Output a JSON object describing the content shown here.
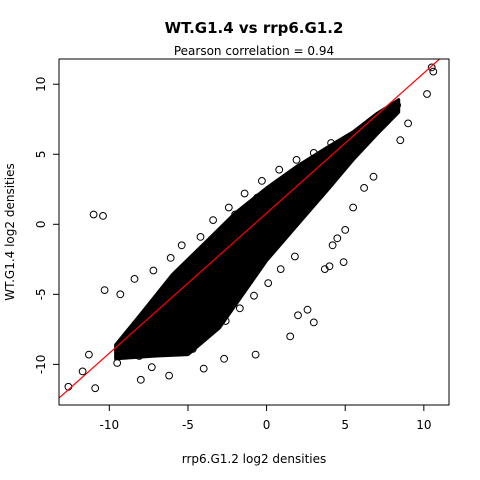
{
  "chart_data": {
    "type": "scatter",
    "title": "WT.G1.4 vs rrp6.G1.2",
    "subtitle": "Pearson correlation =  0.94",
    "xlabel": "rrp6.G1.2 log2 densities",
    "ylabel": "WT.G1.4 log2 densities",
    "xlim": [
      -13.2,
      11.6
    ],
    "ylim": [
      -12.9,
      11.8
    ],
    "x_ticks": [
      -10,
      -5,
      0,
      5,
      10
    ],
    "y_ticks": [
      -10,
      -5,
      0,
      5,
      10
    ],
    "x_tick_labels": [
      "-10",
      "-5",
      "0",
      "5",
      "10"
    ],
    "y_tick_labels": [
      "-10",
      "-5",
      "0",
      "5",
      "10"
    ],
    "grid": false,
    "point_marker": "open-circle",
    "point_color": "#000000",
    "fit_line": {
      "color": "#ff0000",
      "slope": 1.0,
      "intercept": 0.8
    },
    "series": [
      {
        "values": [
          [
            -11.0,
            0.7
          ],
          [
            -10.4,
            0.6
          ],
          [
            -10.3,
            -4.7
          ],
          [
            -12.6,
            -11.6
          ],
          [
            -11.7,
            -10.5
          ],
          [
            -10.9,
            -11.7
          ],
          [
            -11.3,
            -9.3
          ],
          [
            -8.0,
            -11.1
          ],
          [
            -7.3,
            -10.2
          ],
          [
            -6.2,
            -10.8
          ],
          [
            -4.0,
            -10.3
          ],
          [
            -2.7,
            -9.6
          ],
          [
            -0.7,
            -9.3
          ],
          [
            1.5,
            -8.0
          ],
          [
            2.0,
            -6.5
          ],
          [
            2.6,
            -6.1
          ],
          [
            3.0,
            -7.0
          ],
          [
            3.7,
            -3.2
          ],
          [
            4.0,
            -3.0
          ],
          [
            4.5,
            -1.0
          ],
          [
            4.9,
            -2.7
          ],
          [
            4.2,
            -1.5
          ],
          [
            5.0,
            -0.4
          ],
          [
            5.5,
            1.2
          ],
          [
            6.2,
            2.6
          ],
          [
            6.8,
            3.4
          ],
          [
            8.5,
            6.0
          ],
          [
            9.0,
            7.2
          ],
          [
            10.2,
            9.3
          ],
          [
            10.6,
            10.9
          ],
          [
            10.5,
            11.2
          ],
          [
            -0.6,
            1.9
          ],
          [
            -1.6,
            0.8
          ],
          [
            -2.0,
            0.7
          ],
          [
            -1.0,
            -0.5
          ],
          [
            -9.5,
            -9.9
          ],
          [
            -9.0,
            -8.8
          ],
          [
            -8.5,
            -7.7
          ],
          [
            -7.6,
            -7.0
          ],
          [
            -6.8,
            -5.9
          ],
          [
            -6.0,
            -4.8
          ],
          [
            -5.2,
            -4.2
          ],
          [
            -4.6,
            -3.1
          ],
          [
            -3.8,
            -2.0
          ],
          [
            -2.9,
            -1.1
          ],
          [
            -2.0,
            -0.3
          ],
          [
            -1.1,
            0.6
          ],
          [
            -0.2,
            1.5
          ],
          [
            0.7,
            2.1
          ],
          [
            1.6,
            2.9
          ],
          [
            2.5,
            3.6
          ],
          [
            3.3,
            4.3
          ],
          [
            4.2,
            4.9
          ],
          [
            5.1,
            5.6
          ],
          [
            6.0,
            6.3
          ],
          [
            6.8,
            7.0
          ],
          [
            7.6,
            7.8
          ],
          [
            8.3,
            8.5
          ],
          [
            -8.1,
            -9.4
          ],
          [
            -7.0,
            -8.6
          ],
          [
            -6.3,
            -9.0
          ],
          [
            -5.5,
            -8.3
          ],
          [
            -4.7,
            -8.9
          ],
          [
            -3.6,
            -7.6
          ],
          [
            -2.6,
            -6.9
          ],
          [
            -1.7,
            -6.0
          ],
          [
            -0.8,
            -5.1
          ],
          [
            0.1,
            -4.2
          ],
          [
            0.9,
            -3.2
          ],
          [
            1.8,
            -2.3
          ],
          [
            -9.3,
            -5.0
          ],
          [
            -8.4,
            -3.9
          ],
          [
            -7.2,
            -3.3
          ],
          [
            -6.1,
            -2.4
          ],
          [
            -5.4,
            -1.5
          ],
          [
            -4.2,
            -0.9
          ],
          [
            -3.4,
            0.3
          ],
          [
            -2.4,
            1.2
          ],
          [
            -1.4,
            2.2
          ],
          [
            -0.3,
            3.1
          ],
          [
            0.8,
            3.9
          ],
          [
            1.9,
            4.6
          ],
          [
            3.0,
            5.1
          ],
          [
            4.1,
            5.8
          ]
        ]
      }
    ]
  }
}
